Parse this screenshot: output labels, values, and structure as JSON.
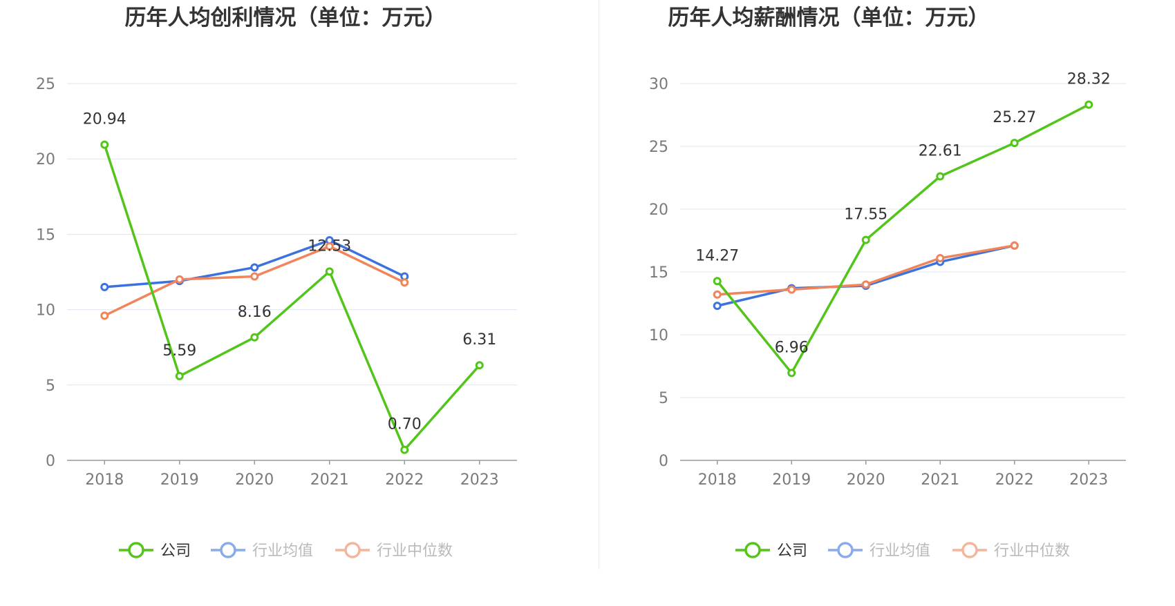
{
  "colors": {
    "company": "#52c41a",
    "industry_avg": "#3b72de",
    "industry_median": "#f0845a",
    "grid": "#dfe5f1",
    "axis": "#999999"
  },
  "legend": {
    "company": "公司",
    "industry_avg": "行业均值",
    "industry_median": "行业中位数"
  },
  "chart_data": [
    {
      "type": "line",
      "title": "历年人均创利情况（单位：万元）",
      "categories": [
        "2018",
        "2019",
        "2020",
        "2021",
        "2022",
        "2023"
      ],
      "ylim": [
        0,
        25
      ],
      "yticks": [
        0,
        5,
        10,
        15,
        20,
        25
      ],
      "grid": true,
      "legend_position": "bottom",
      "series": [
        {
          "key": "company",
          "name": "公司",
          "values": [
            20.94,
            5.59,
            8.16,
            12.53,
            0.7,
            6.31
          ],
          "labels": [
            "20.94",
            "5.59",
            "8.16",
            "12.53",
            "0.70",
            "6.31"
          ]
        },
        {
          "key": "industry_avg",
          "name": "行业均值",
          "values": [
            11.5,
            11.9,
            12.8,
            14.6,
            12.2,
            null
          ]
        },
        {
          "key": "industry_median",
          "name": "行业中位数",
          "values": [
            9.6,
            12.0,
            12.2,
            14.2,
            11.8,
            null
          ]
        }
      ]
    },
    {
      "type": "line",
      "title": "历年人均薪酬情况（单位：万元）",
      "categories": [
        "2018",
        "2019",
        "2020",
        "2021",
        "2022",
        "2023"
      ],
      "ylim": [
        0,
        30
      ],
      "yticks": [
        0,
        5,
        10,
        15,
        20,
        25,
        30
      ],
      "grid": true,
      "legend_position": "bottom",
      "series": [
        {
          "key": "company",
          "name": "公司",
          "values": [
            14.27,
            6.96,
            17.55,
            22.61,
            25.27,
            28.32
          ],
          "labels": [
            "14.27",
            "6.96",
            "17.55",
            "22.61",
            "25.27",
            "28.32"
          ]
        },
        {
          "key": "industry_avg",
          "name": "行业均值",
          "values": [
            12.3,
            13.7,
            13.9,
            15.8,
            17.1,
            null
          ]
        },
        {
          "key": "industry_median",
          "name": "行业中位数",
          "values": [
            13.2,
            13.6,
            14.0,
            16.1,
            17.1,
            null
          ]
        }
      ]
    }
  ]
}
